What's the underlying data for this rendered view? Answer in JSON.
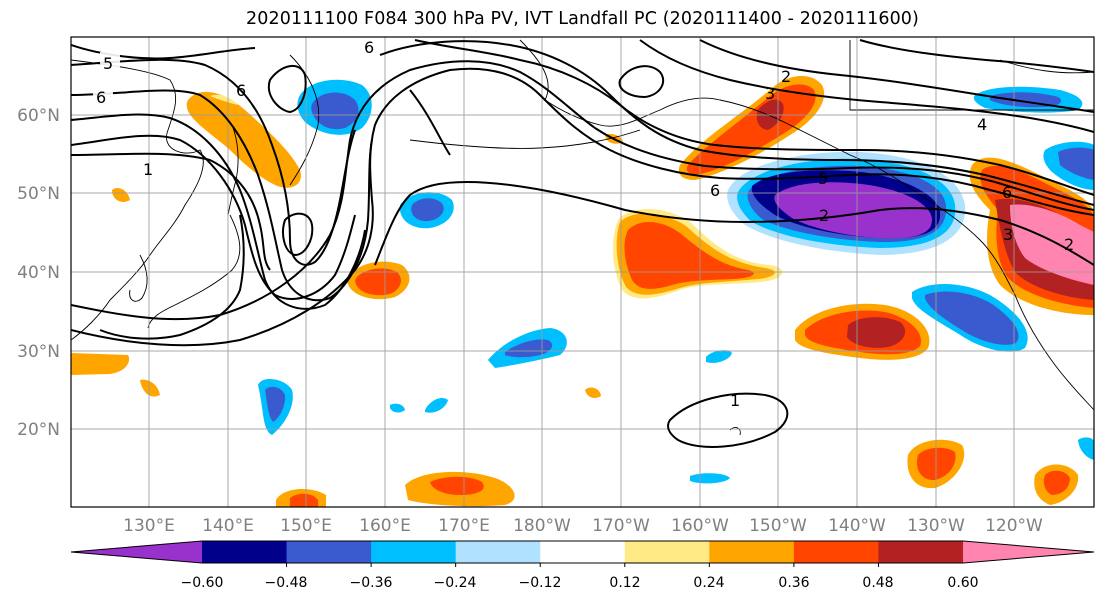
{
  "title": "2020111100 F084 300 hPa PV, IVT Landfall PC (2020111400 - 2020111600)",
  "lat_labels": [
    "60°N",
    "50°N",
    "40°N",
    "30°N",
    "20°N"
  ],
  "lon_labels": [
    "130°E",
    "140°E",
    "150°E",
    "160°E",
    "170°E",
    "180°W",
    "170°W",
    "160°W",
    "150°W",
    "140°W",
    "130°W",
    "120°W"
  ],
  "colorbar": {
    "tick_labels": [
      "−0.60",
      "−0.48",
      "−0.36",
      "−0.24",
      "−0.12",
      "0.12",
      "0.24",
      "0.36",
      "0.48",
      "0.60"
    ],
    "colors": [
      "#9932CC",
      "#00008B",
      "#3A5BCF",
      "#00BFFF",
      "#B0E2FF",
      "#FFFFFF",
      "#FFEA85",
      "#FFA500",
      "#FF4500",
      "#B22222",
      "#FF85B0"
    ]
  },
  "contour_labels": [
    "5",
    "6",
    "6",
    "6",
    "1",
    "2",
    "3",
    "4",
    "6",
    "5",
    "2",
    "1",
    "6",
    "2",
    "3"
  ]
}
